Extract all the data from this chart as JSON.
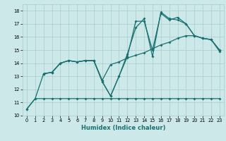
{
  "xlabel": "Humidex (Indice chaleur)",
  "bg_color": "#cce8e8",
  "line_color": "#1a7070",
  "grid_color": "#a8cccc",
  "xlim": [
    -0.5,
    23.5
  ],
  "ylim": [
    10,
    18.5
  ],
  "xticks": [
    0,
    1,
    2,
    3,
    4,
    5,
    6,
    7,
    8,
    9,
    10,
    11,
    12,
    13,
    14,
    15,
    16,
    17,
    18,
    19,
    20,
    21,
    22,
    23
  ],
  "yticks": [
    10,
    11,
    12,
    13,
    14,
    15,
    16,
    17,
    18
  ],
  "lines": [
    {
      "comment": "bottom flat line: 0->10.5, 1->11.3, then flat ~11.3 to x=23",
      "x": [
        0,
        1,
        2,
        3,
        4,
        5,
        6,
        7,
        8,
        9,
        10,
        11,
        12,
        13,
        14,
        15,
        16,
        17,
        18,
        19,
        20,
        21,
        22,
        23
      ],
      "y": [
        10.5,
        11.3,
        11.3,
        11.3,
        11.3,
        11.3,
        11.3,
        11.3,
        11.3,
        11.3,
        11.3,
        11.3,
        11.3,
        11.3,
        11.3,
        11.3,
        11.3,
        11.3,
        11.3,
        11.3,
        11.3,
        11.3,
        11.3,
        11.3
      ]
    },
    {
      "x": [
        0,
        1,
        2,
        3,
        4,
        5,
        6,
        7,
        8,
        9,
        10,
        11,
        12,
        13,
        14,
        15,
        16,
        17,
        18,
        19,
        20,
        21,
        22,
        23
      ],
      "y": [
        10.5,
        11.3,
        13.2,
        13.3,
        14.0,
        14.2,
        14.1,
        14.2,
        14.2,
        12.7,
        13.9,
        14.1,
        14.4,
        14.6,
        14.8,
        15.1,
        15.4,
        15.6,
        15.9,
        16.1,
        16.1,
        15.9,
        15.8,
        15.0
      ]
    },
    {
      "x": [
        2,
        3,
        4,
        5,
        6,
        7,
        8,
        9,
        10,
        11,
        12,
        13,
        14,
        15,
        16,
        17,
        18,
        19,
        20,
        21,
        22,
        23
      ],
      "y": [
        13.2,
        13.3,
        14.0,
        14.2,
        14.1,
        14.2,
        14.2,
        12.6,
        11.5,
        13.0,
        14.5,
        17.2,
        17.2,
        15.0,
        17.8,
        17.3,
        17.5,
        17.0,
        16.1,
        15.9,
        15.8,
        15.0
      ]
    },
    {
      "x": [
        2,
        3,
        4,
        5,
        6,
        7,
        8,
        9,
        10,
        11,
        12,
        13,
        14,
        15,
        16,
        17,
        18,
        19,
        20,
        21,
        22,
        23
      ],
      "y": [
        13.2,
        13.3,
        14.0,
        14.2,
        14.1,
        14.2,
        14.2,
        12.6,
        11.5,
        13.0,
        14.7,
        16.7,
        17.4,
        14.5,
        17.9,
        17.4,
        17.3,
        17.0,
        16.1,
        15.9,
        15.8,
        14.9
      ]
    }
  ],
  "xlabel_fontsize": 6,
  "tick_fontsize": 4.8,
  "linewidth": 0.9,
  "markersize": 2.0
}
